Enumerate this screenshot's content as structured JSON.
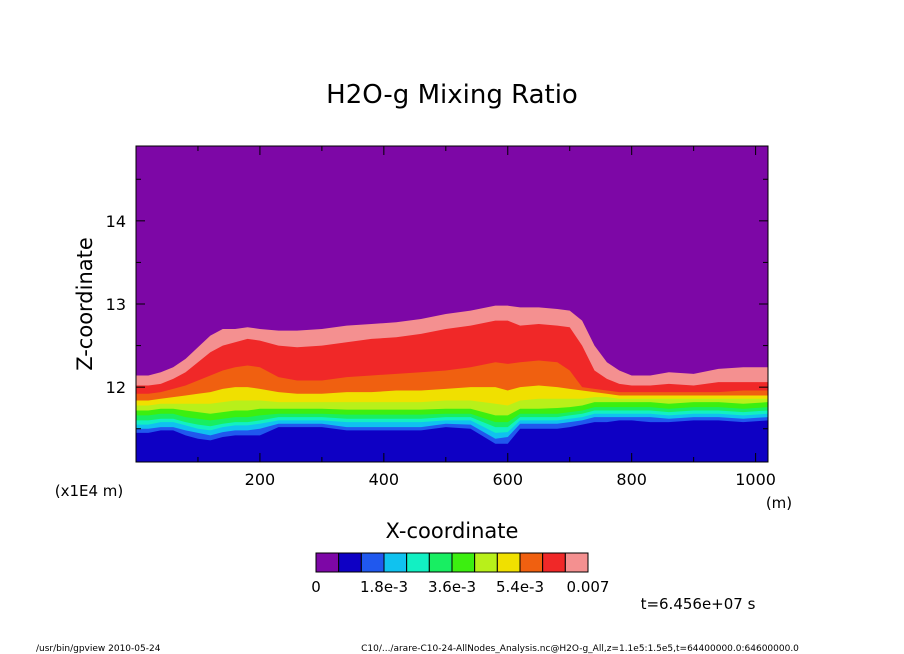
{
  "chart_data": {
    "type": "heatmap",
    "title": "H2O-g Mixing Ratio",
    "xlabel": "X-coordinate",
    "ylabel": "Z-coordinate",
    "x_unit": "(m)",
    "y_unit": "(x1E4 m)",
    "xlim": [
      0,
      1020
    ],
    "ylim": [
      11.1,
      14.9
    ],
    "x_ticks": [
      200,
      400,
      600,
      800,
      1000
    ],
    "x_tick_labels": [
      "200",
      "400",
      "600",
      "800",
      "1000"
    ],
    "y_ticks": [
      12,
      13,
      14
    ],
    "y_tick_labels": [
      "12",
      "13",
      "14"
    ],
    "colorbar": {
      "levels": [
        0,
        0.0006,
        0.0012,
        0.0018,
        0.0024,
        0.003,
        0.0036,
        0.0042,
        0.0048,
        0.0054,
        0.006,
        0.0066,
        0.007
      ],
      "colors": [
        "#7d07a6",
        "#0e00c4",
        "#2058ee",
        "#10c2ef",
        "#12f0c3",
        "#18ee62",
        "#3cef10",
        "#b8f01a",
        "#f0e000",
        "#f06010",
        "#f02828",
        "#f49090"
      ],
      "tick_labels": [
        "0",
        "1.8e-3",
        "3.6e-3",
        "5.4e-3",
        "0.007"
      ]
    },
    "contours_z": {
      "x": [
        0,
        20,
        40,
        60,
        80,
        100,
        120,
        140,
        160,
        180,
        200,
        230,
        260,
        300,
        340,
        380,
        420,
        460,
        500,
        540,
        580,
        600,
        620,
        650,
        680,
        700,
        720,
        740,
        760,
        780,
        800,
        830,
        860,
        900,
        940,
        980,
        1020
      ],
      "boundaries": [
        [
          11.45,
          11.45,
          11.48,
          11.48,
          11.42,
          11.38,
          11.36,
          11.4,
          11.42,
          11.42,
          11.42,
          11.52,
          11.52,
          11.52,
          11.48,
          11.48,
          11.48,
          11.48,
          11.52,
          11.5,
          11.32,
          11.32,
          11.5,
          11.5,
          11.5,
          11.52,
          11.55,
          11.58,
          11.58,
          11.6,
          11.6,
          11.58,
          11.58,
          11.6,
          11.6,
          11.58,
          11.6
        ],
        [
          11.5,
          11.5,
          11.52,
          11.52,
          11.48,
          11.45,
          11.42,
          11.46,
          11.48,
          11.48,
          11.5,
          11.56,
          11.56,
          11.56,
          11.52,
          11.52,
          11.52,
          11.52,
          11.56,
          11.55,
          11.38,
          11.4,
          11.56,
          11.56,
          11.56,
          11.58,
          11.6,
          11.64,
          11.64,
          11.64,
          11.64,
          11.64,
          11.62,
          11.64,
          11.64,
          11.62,
          11.64
        ],
        [
          11.55,
          11.55,
          11.58,
          11.58,
          11.54,
          11.5,
          11.48,
          11.52,
          11.54,
          11.54,
          11.56,
          11.6,
          11.6,
          11.6,
          11.58,
          11.58,
          11.58,
          11.58,
          11.6,
          11.6,
          11.45,
          11.46,
          11.6,
          11.6,
          11.6,
          11.62,
          11.64,
          11.68,
          11.68,
          11.68,
          11.68,
          11.68,
          11.66,
          11.68,
          11.68,
          11.66,
          11.68
        ],
        [
          11.6,
          11.6,
          11.62,
          11.62,
          11.58,
          11.55,
          11.53,
          11.56,
          11.58,
          11.58,
          11.6,
          11.64,
          11.64,
          11.64,
          11.62,
          11.62,
          11.62,
          11.62,
          11.64,
          11.64,
          11.52,
          11.52,
          11.64,
          11.64,
          11.64,
          11.66,
          11.68,
          11.72,
          11.72,
          11.72,
          11.72,
          11.72,
          11.7,
          11.72,
          11.72,
          11.7,
          11.72
        ],
        [
          11.66,
          11.66,
          11.68,
          11.68,
          11.64,
          11.62,
          11.6,
          11.62,
          11.64,
          11.64,
          11.66,
          11.68,
          11.68,
          11.68,
          11.67,
          11.67,
          11.67,
          11.67,
          11.68,
          11.68,
          11.58,
          11.58,
          11.68,
          11.68,
          11.68,
          11.7,
          11.72,
          11.76,
          11.76,
          11.76,
          11.76,
          11.76,
          11.74,
          11.76,
          11.76,
          11.74,
          11.76
        ],
        [
          11.72,
          11.72,
          11.74,
          11.74,
          11.72,
          11.7,
          11.68,
          11.7,
          11.72,
          11.72,
          11.74,
          11.74,
          11.74,
          11.74,
          11.73,
          11.73,
          11.73,
          11.73,
          11.74,
          11.74,
          11.66,
          11.66,
          11.74,
          11.74,
          11.75,
          11.76,
          11.78,
          11.82,
          11.82,
          11.82,
          11.82,
          11.82,
          11.8,
          11.82,
          11.82,
          11.8,
          11.82
        ],
        [
          11.78,
          11.78,
          11.8,
          11.8,
          11.8,
          11.8,
          11.8,
          11.82,
          11.84,
          11.84,
          11.84,
          11.82,
          11.82,
          11.82,
          11.82,
          11.82,
          11.82,
          11.82,
          11.84,
          11.84,
          11.8,
          11.78,
          11.84,
          11.86,
          11.86,
          11.86,
          11.86,
          11.88,
          11.88,
          11.86,
          11.86,
          11.86,
          11.86,
          11.86,
          11.86,
          11.86,
          11.86
        ],
        [
          11.84,
          11.84,
          11.86,
          11.88,
          11.9,
          11.92,
          11.94,
          11.98,
          12.0,
          12.0,
          11.98,
          11.94,
          11.92,
          11.92,
          11.94,
          11.94,
          11.96,
          11.96,
          11.98,
          12.0,
          12.0,
          11.96,
          12.0,
          12.02,
          12.0,
          11.98,
          11.96,
          11.94,
          11.92,
          11.9,
          11.9,
          11.9,
          11.9,
          11.9,
          11.9,
          11.9,
          11.9
        ],
        [
          11.92,
          11.92,
          11.94,
          11.98,
          12.02,
          12.08,
          12.14,
          12.2,
          12.24,
          12.26,
          12.24,
          12.12,
          12.08,
          12.08,
          12.12,
          12.14,
          12.16,
          12.18,
          12.2,
          12.24,
          12.3,
          12.28,
          12.3,
          12.32,
          12.3,
          12.2,
          12.0,
          11.98,
          11.96,
          11.94,
          11.94,
          11.94,
          11.94,
          11.94,
          11.94,
          11.96,
          11.96
        ],
        [
          12.02,
          12.02,
          12.04,
          12.1,
          12.18,
          12.3,
          12.42,
          12.5,
          12.54,
          12.58,
          12.56,
          12.5,
          12.48,
          12.5,
          12.54,
          12.58,
          12.6,
          12.64,
          12.7,
          12.74,
          12.8,
          12.8,
          12.74,
          12.76,
          12.74,
          12.72,
          12.5,
          12.2,
          12.1,
          12.04,
          12.02,
          12.02,
          12.04,
          12.02,
          12.06,
          12.06,
          12.06
        ],
        [
          12.14,
          12.14,
          12.18,
          12.24,
          12.34,
          12.48,
          12.62,
          12.7,
          12.7,
          12.72,
          12.7,
          12.68,
          12.68,
          12.7,
          12.74,
          12.76,
          12.78,
          12.82,
          12.88,
          12.92,
          12.98,
          12.98,
          12.96,
          12.96,
          12.94,
          12.92,
          12.8,
          12.5,
          12.3,
          12.2,
          12.14,
          12.14,
          12.18,
          12.16,
          12.22,
          12.24,
          12.24
        ]
      ],
      "top_class": 0
    },
    "annotations": {
      "time": "t=6.456e+07 s",
      "footer_left": "/usr/bin/gpview  2010-05-24",
      "footer_right": "C10/.../arare-C10-24-AllNodes_Analysis.nc@H2O-g_All,z=1.1e5:1.5e5,t=64400000.0:64600000.0"
    }
  }
}
